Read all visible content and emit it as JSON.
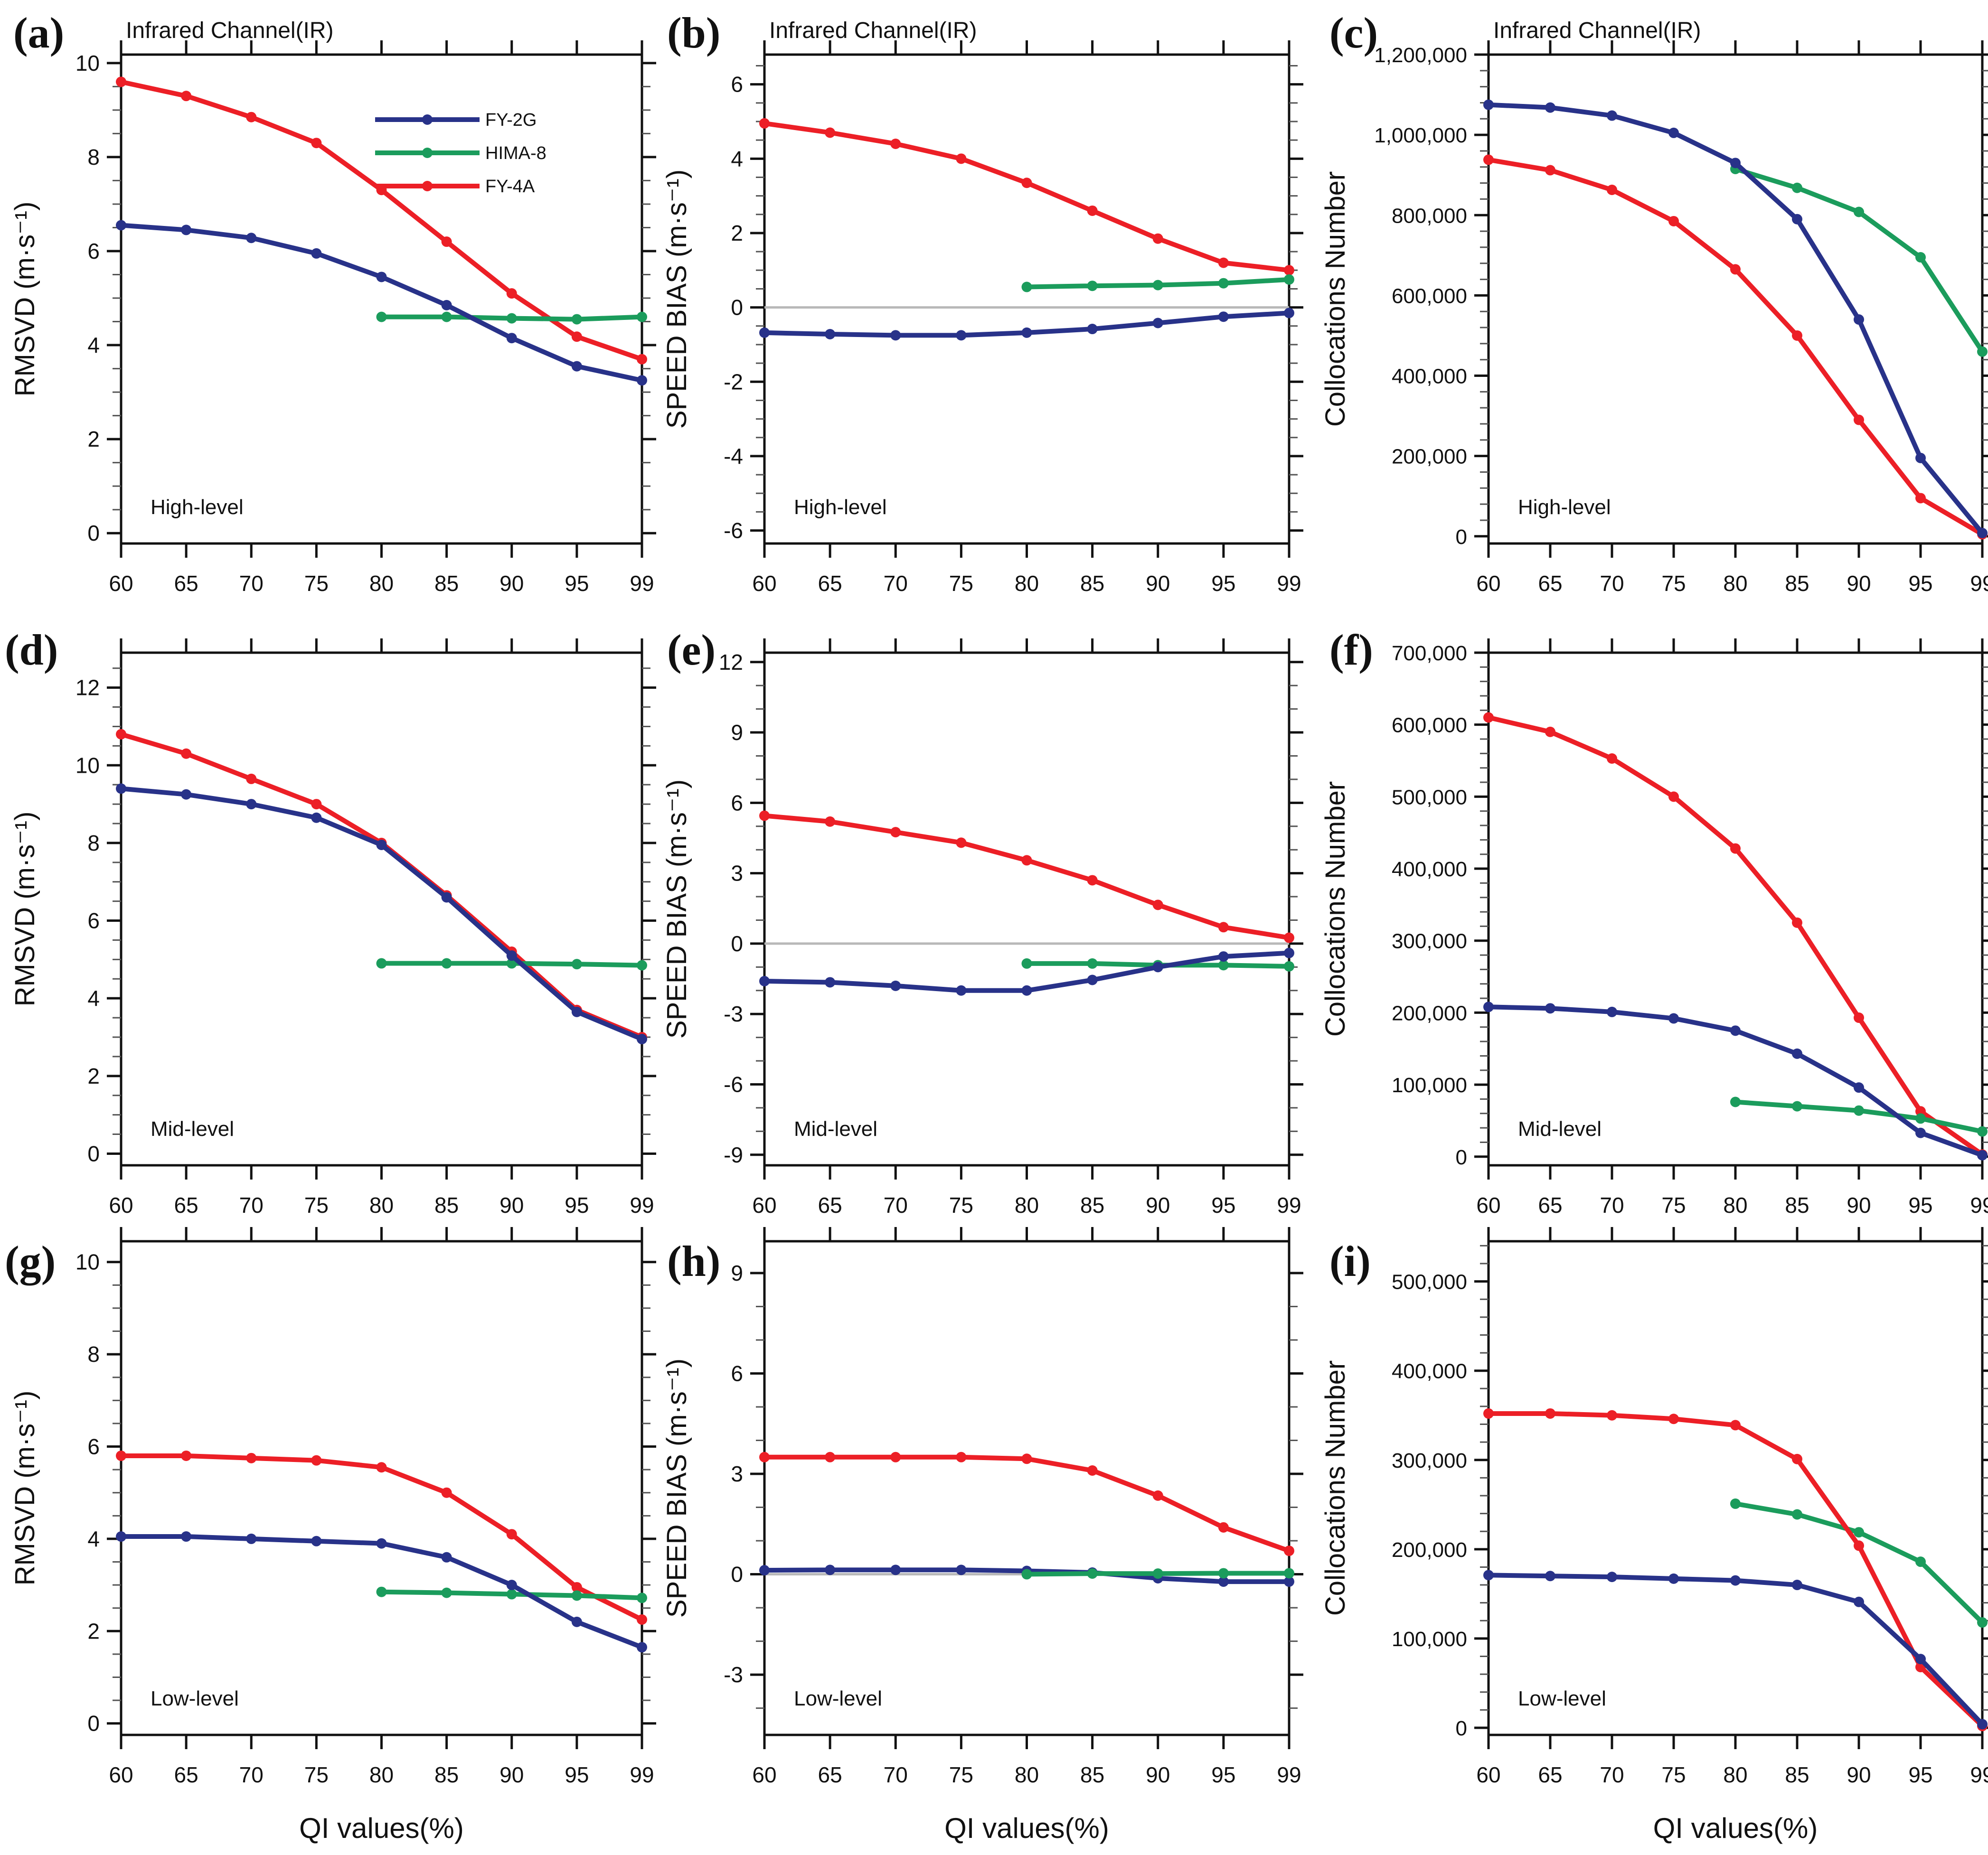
{
  "figure": {
    "panel_letters": [
      "(a)",
      "(b)",
      "(c)",
      "(d)",
      "(e)",
      "(f)",
      "(g)",
      "(h)",
      "(i)"
    ]
  },
  "chart_data": {
    "type": "line",
    "x_values": [
      60,
      65,
      70,
      75,
      80,
      85,
      90,
      95,
      99
    ],
    "xlabel": "QI values(%)",
    "legend": [
      "FY-2G",
      "HIMA-8",
      "FY-4A"
    ],
    "legend_position": "top-right of panel (a)",
    "colors": {
      "FY-2G": "#283289",
      "HIMA-8": "#1B9C5C",
      "FY-4A": "#EC1F26",
      "zero_line": "#B8B8B8"
    },
    "grid": "off",
    "panels": [
      {
        "id": "a",
        "letter": "(a)",
        "title": "Infrared Channel(IR)",
        "ylabel": "RMSVD (m·s⁻¹)",
        "level": "High-level",
        "ylim": [
          -0.22,
          10.18
        ],
        "yticks": {
          "start": 0,
          "end": 10,
          "step": 2,
          "minor": 0.5,
          "format": "plain"
        },
        "zero_line": false,
        "legend": true,
        "show_xlabel": false,
        "series": [
          {
            "name": "FY-4A",
            "values": [
              9.6,
              9.3,
              8.85,
              8.3,
              7.3,
              6.2,
              5.1,
              4.18,
              3.7
            ]
          },
          {
            "name": "HIMA-8",
            "values": [
              null,
              null,
              null,
              null,
              4.6,
              4.6,
              4.57,
              4.55,
              4.6
            ]
          },
          {
            "name": "FY-2G",
            "values": [
              6.55,
              6.45,
              6.28,
              5.95,
              5.45,
              4.85,
              4.15,
              3.55,
              3.25
            ]
          }
        ]
      },
      {
        "id": "b",
        "letter": "(b)",
        "title": "Infrared Channel(IR)",
        "ylabel": "SPEED BIAS (m·s⁻¹)",
        "level": "High-level",
        "ylim": [
          -6.35,
          6.8
        ],
        "yticks": {
          "start": -6,
          "end": 6,
          "step": 2,
          "minor": 0.5,
          "format": "plain"
        },
        "zero_line": true,
        "legend": false,
        "show_xlabel": false,
        "series": [
          {
            "name": "FY-4A",
            "values": [
              4.95,
              4.7,
              4.4,
              4.0,
              3.35,
              2.6,
              1.85,
              1.2,
              1.0
            ]
          },
          {
            "name": "HIMA-8",
            "values": [
              null,
              null,
              null,
              null,
              0.55,
              0.58,
              0.6,
              0.65,
              0.75
            ]
          },
          {
            "name": "FY-2G",
            "values": [
              -0.68,
              -0.72,
              -0.75,
              -0.75,
              -0.68,
              -0.58,
              -0.42,
              -0.25,
              -0.15
            ]
          }
        ]
      },
      {
        "id": "c",
        "letter": "(c)",
        "title": "Infrared Channel(IR)",
        "ylabel": "Collocations Number",
        "level": "High-level",
        "ylim": [
          -18000,
          1200000
        ],
        "yticks": {
          "start": 0,
          "end": 1200000,
          "step": 200000,
          "minor": 40000,
          "format": "thousands"
        },
        "zero_line": false,
        "legend": false,
        "show_xlabel": false,
        "series": [
          {
            "name": "FY-4A",
            "values": [
              938000,
              912000,
              863000,
              785000,
              665000,
              500000,
              290000,
              95000,
              5000
            ]
          },
          {
            "name": "HIMA-8",
            "values": [
              null,
              null,
              null,
              null,
              915000,
              868000,
              808000,
              695000,
              460000
            ]
          },
          {
            "name": "FY-2G",
            "values": [
              1075000,
              1068000,
              1048000,
              1005000,
              930000,
              790000,
              540000,
              195000,
              8000
            ]
          }
        ]
      },
      {
        "id": "d",
        "letter": "(d)",
        "title": "",
        "ylabel": "RMSVD (m·s⁻¹)",
        "level": "Mid-level",
        "ylim": [
          -0.3,
          12.9
        ],
        "yticks": {
          "start": 0,
          "end": 12,
          "step": 2,
          "minor": 0.5,
          "format": "plain"
        },
        "zero_line": false,
        "legend": false,
        "show_xlabel": false,
        "series": [
          {
            "name": "FY-4A",
            "values": [
              10.8,
              10.3,
              9.65,
              9.0,
              8.0,
              6.65,
              5.2,
              3.7,
              3.0
            ]
          },
          {
            "name": "HIMA-8",
            "values": [
              null,
              null,
              null,
              null,
              4.9,
              4.9,
              4.9,
              4.88,
              4.85
            ]
          },
          {
            "name": "FY-2G",
            "values": [
              9.4,
              9.25,
              9.0,
              8.65,
              7.95,
              6.6,
              5.1,
              3.65,
              2.95
            ]
          }
        ]
      },
      {
        "id": "e",
        "letter": "(e)",
        "title": "",
        "ylabel": "SPEED BIAS (m·s⁻¹)",
        "level": "Mid-level",
        "ylim": [
          -9.45,
          12.4
        ],
        "yticks": {
          "start": -9,
          "end": 12,
          "step": 3,
          "minor": 1,
          "format": "plain"
        },
        "zero_line": true,
        "legend": false,
        "show_xlabel": false,
        "series": [
          {
            "name": "FY-4A",
            "values": [
              5.45,
              5.2,
              4.75,
              4.3,
              3.55,
              2.7,
              1.65,
              0.7,
              0.25
            ]
          },
          {
            "name": "HIMA-8",
            "values": [
              null,
              null,
              null,
              null,
              -0.85,
              -0.85,
              -0.92,
              -0.92,
              -0.97
            ]
          },
          {
            "name": "FY-2G",
            "values": [
              -1.6,
              -1.65,
              -1.8,
              -2.0,
              -2.0,
              -1.55,
              -1.0,
              -0.55,
              -0.4
            ]
          }
        ]
      },
      {
        "id": "f",
        "letter": "(f)",
        "title": "",
        "ylabel": "Collocations Number",
        "level": "Mid-level",
        "ylim": [
          -12000,
          700000
        ],
        "yticks": {
          "start": 0,
          "end": 700000,
          "step": 100000,
          "minor": 20000,
          "format": "thousands"
        },
        "zero_line": false,
        "legend": false,
        "show_xlabel": false,
        "series": [
          {
            "name": "FY-4A",
            "values": [
              610000,
              590000,
              553000,
              500000,
              428000,
              325000,
              193000,
              63000,
              3000
            ]
          },
          {
            "name": "HIMA-8",
            "values": [
              null,
              null,
              null,
              null,
              76000,
              70000,
              64000,
              53000,
              35000
            ]
          },
          {
            "name": "FY-2G",
            "values": [
              208000,
              206000,
              201000,
              192000,
              175000,
              143000,
              96000,
              33000,
              2000
            ]
          }
        ]
      },
      {
        "id": "g",
        "letter": "(g)",
        "title": "",
        "ylabel": "RMSVD (m·s⁻¹)",
        "level": "Low-level",
        "ylim": [
          -0.25,
          10.45
        ],
        "yticks": {
          "start": 0,
          "end": 10,
          "step": 2,
          "minor": 0.5,
          "format": "plain"
        },
        "zero_line": false,
        "legend": false,
        "show_xlabel": true,
        "series": [
          {
            "name": "FY-4A",
            "values": [
              5.8,
              5.8,
              5.75,
              5.7,
              5.55,
              5.0,
              4.1,
              2.95,
              2.25
            ]
          },
          {
            "name": "HIMA-8",
            "values": [
              null,
              null,
              null,
              null,
              2.85,
              2.83,
              2.8,
              2.77,
              2.72
            ]
          },
          {
            "name": "FY-2G",
            "values": [
              4.05,
              4.05,
              4.0,
              3.95,
              3.9,
              3.6,
              3.0,
              2.2,
              1.65
            ]
          }
        ]
      },
      {
        "id": "h",
        "letter": "(h)",
        "title": "",
        "ylabel": "SPEED BIAS (m·s⁻¹)",
        "level": "Low-level",
        "ylim": [
          -4.8,
          9.95
        ],
        "yticks": {
          "start": -3,
          "end": 9,
          "step": 3,
          "minor": 1,
          "format": "plain"
        },
        "zero_line": true,
        "legend": false,
        "show_xlabel": true,
        "series": [
          {
            "name": "FY-4A",
            "values": [
              3.5,
              3.5,
              3.5,
              3.5,
              3.45,
              3.1,
              2.35,
              1.4,
              0.7
            ]
          },
          {
            "name": "FY-2G",
            "values": [
              0.12,
              0.13,
              0.13,
              0.13,
              0.1,
              0.05,
              -0.12,
              -0.22,
              -0.22
            ]
          },
          {
            "name": "HIMA-8",
            "values": [
              null,
              null,
              null,
              null,
              0.0,
              0.02,
              0.02,
              0.03,
              0.03
            ]
          }
        ]
      },
      {
        "id": "i",
        "letter": "(i)",
        "title": "",
        "ylabel": "Collocations Number",
        "level": "Low-level",
        "ylim": [
          -8000,
          545000
        ],
        "yticks": {
          "start": 0,
          "end": 500000,
          "step": 100000,
          "minor": 20000,
          "format": "thousands"
        },
        "zero_line": false,
        "legend": false,
        "show_xlabel": true,
        "series": [
          {
            "name": "HIMA-8",
            "values": [
              null,
              null,
              null,
              null,
              251000,
              239000,
              219000,
              186000,
              118000
            ]
          },
          {
            "name": "FY-4A",
            "values": [
              352000,
              352000,
              350000,
              346000,
              339000,
              301000,
              204000,
              68000,
              2000
            ]
          },
          {
            "name": "FY-2G",
            "values": [
              171000,
              170000,
              169000,
              167000,
              165000,
              160000,
              141000,
              77000,
              4000
            ]
          }
        ]
      }
    ]
  }
}
